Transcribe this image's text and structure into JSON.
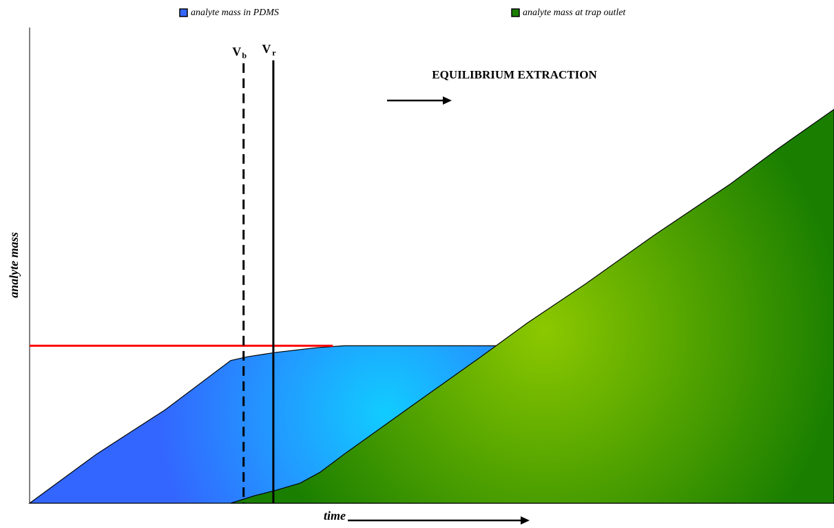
{
  "chart_data": {
    "type": "area",
    "xlabel": "time",
    "ylabel": "analyte mass",
    "annotation": "EQUILIBRIUM EXTRACTION",
    "xlim": [
      0,
      100
    ],
    "ylim": [
      0,
      100
    ],
    "series": [
      {
        "name": "analyte mass in PDMS",
        "color": "#3366ff",
        "x": [
          0,
          8.3,
          16.9,
          25.0,
          27.1,
          30.6,
          35.7,
          39.1,
          58.4,
          100
        ],
        "values": [
          0,
          10.3,
          19.7,
          30.0,
          30.8,
          31.7,
          32.7,
          33.1,
          33.1,
          33.1
        ]
      },
      {
        "name": "analyte mass at trap outlet",
        "color": "#1a7f00",
        "x": [
          25.0,
          28.0,
          30.6,
          33.6,
          36.1,
          39.1,
          47.7,
          56.2,
          61.8,
          69.1,
          77.6,
          87.1,
          93.1,
          100
        ],
        "values": [
          0,
          1.6,
          2.7,
          4.2,
          6.5,
          10.3,
          20.7,
          30.9,
          37.8,
          46.1,
          56.3,
          67.1,
          74.6,
          82.8
        ]
      }
    ],
    "hline": {
      "y": 33.1,
      "x": [
        0,
        37.7
      ],
      "color": "#ff0000"
    },
    "vlines": [
      {
        "label": "V",
        "sub": "b",
        "x": 26.6,
        "top": 92.5,
        "style": "dashed"
      },
      {
        "label": "V",
        "sub": "r",
        "x": 30.3,
        "top": 93.1,
        "style": "solid"
      }
    ]
  }
}
